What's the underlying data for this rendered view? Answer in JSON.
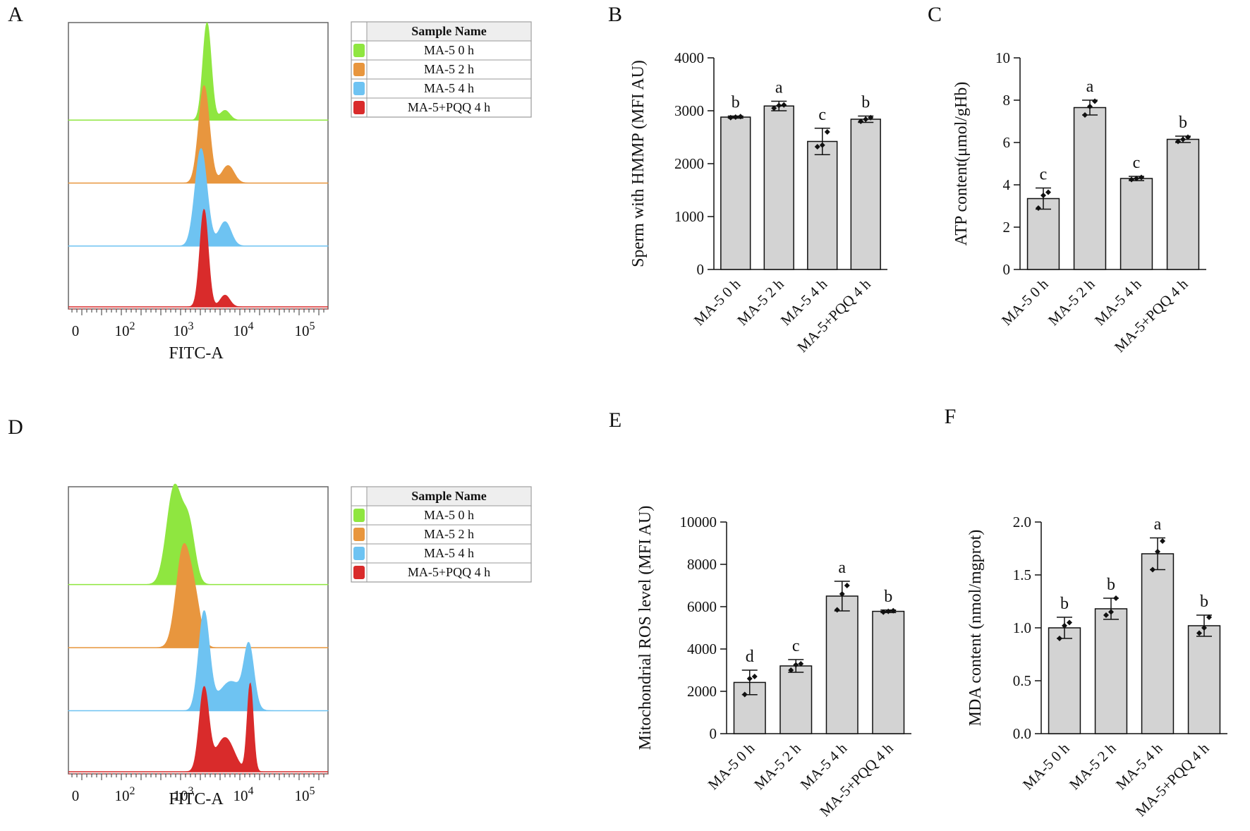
{
  "panels": [
    "A",
    "B",
    "C",
    "D",
    "E",
    "F"
  ],
  "chart_data": [
    {
      "panel": "A",
      "type": "area",
      "chart_kind": "flow-cytometry-histogram",
      "xlabel": "FITC-A",
      "x_ticks": [
        "0",
        "10^2",
        "10^3",
        "10^4",
        "10^5"
      ],
      "legend": {
        "header": "Sample Name",
        "entries": [
          "MA-5 0 h",
          "MA-5 2 h",
          "MA-5 4 h",
          "MA-5+PQQ 4 h"
        ],
        "placement": "right"
      },
      "series": [
        {
          "name": "MA-5 0 h",
          "color": "#8fe640",
          "peaks": [
            {
              "log_x": 3.3,
              "height": 1.0,
              "width": 0.07
            },
            {
              "log_x": 3.6,
              "height": 0.1,
              "width": 0.08
            }
          ]
        },
        {
          "name": "MA-5 2 h",
          "color": "#e8963e",
          "peaks": [
            {
              "log_x": 3.25,
              "height": 1.0,
              "width": 0.09
            },
            {
              "log_x": 3.65,
              "height": 0.18,
              "width": 0.1
            }
          ]
        },
        {
          "name": "MA-5 4 h",
          "color": "#6ec3f2",
          "peaks": [
            {
              "log_x": 3.2,
              "height": 1.0,
              "width": 0.1
            },
            {
              "log_x": 3.6,
              "height": 0.25,
              "width": 0.1
            }
          ]
        },
        {
          "name": "MA-5+PQQ 4 h",
          "color": "#d92b2b",
          "peaks": [
            {
              "log_x": 3.25,
              "height": 1.0,
              "width": 0.07
            },
            {
              "log_x": 3.6,
              "height": 0.12,
              "width": 0.08
            }
          ]
        }
      ]
    },
    {
      "panel": "B",
      "type": "bar",
      "categories": [
        "MA-5 0 h",
        "MA-5 2 h",
        "MA-5 4 h",
        "MA-5+PQQ 4 h"
      ],
      "values": [
        2880,
        3090,
        2420,
        2840
      ],
      "errors": [
        20,
        90,
        250,
        60
      ],
      "points": [
        [
          2870,
          2880,
          2890
        ],
        [
          3050,
          3100,
          3110
        ],
        [
          2320,
          2350,
          2600
        ],
        [
          2800,
          2840,
          2870
        ]
      ],
      "letters": [
        "b",
        "a",
        "c",
        "b"
      ],
      "ylabel": "Sperm with HMMP (MFI AU)",
      "ylim": [
        0,
        4000
      ],
      "yticks": [
        0,
        1000,
        2000,
        3000,
        4000
      ]
    },
    {
      "panel": "C",
      "type": "bar",
      "categories": [
        "MA-5 0 h",
        "MA-5 2 h",
        "MA-5 4 h",
        "MA-5+PQQ 4 h"
      ],
      "values": [
        3.35,
        7.65,
        4.3,
        6.15
      ],
      "errors": [
        0.5,
        0.35,
        0.1,
        0.15
      ],
      "points": [
        [
          2.9,
          3.5,
          3.65
        ],
        [
          7.3,
          7.7,
          7.95
        ],
        [
          4.25,
          4.3,
          4.35
        ],
        [
          6.05,
          6.15,
          6.25
        ]
      ],
      "letters": [
        "c",
        "a",
        "c",
        "b"
      ],
      "ylabel": "ATP  content(μmol/gHb)",
      "ylim": [
        0,
        10
      ],
      "yticks": [
        0,
        2,
        4,
        6,
        8,
        10
      ]
    },
    {
      "panel": "D",
      "type": "area",
      "chart_kind": "flow-cytometry-histogram",
      "xlabel": "FITC-A",
      "x_ticks": [
        "0",
        "10^2",
        "10^3",
        "10^4",
        "10^5"
      ],
      "legend": {
        "header": "Sample Name",
        "entries": [
          "MA-5 0 h",
          "MA-5 2 h",
          "MA-5 4 h",
          "MA-5+PQQ 4 h"
        ],
        "placement": "right"
      },
      "series": [
        {
          "name": "MA-5 0 h",
          "color": "#8fe640",
          "peaks": [
            {
              "log_x": 2.75,
              "height": 1.0,
              "width": 0.13
            },
            {
              "log_x": 3.0,
              "height": 0.55,
              "width": 0.1
            }
          ]
        },
        {
          "name": "MA-5 2 h",
          "color": "#e8963e",
          "peaks": [
            {
              "log_x": 2.9,
              "height": 1.0,
              "width": 0.12
            },
            {
              "log_x": 3.1,
              "height": 0.4,
              "width": 0.1
            }
          ]
        },
        {
          "name": "MA-5 4 h",
          "color": "#6ec3f2",
          "peaks": [
            {
              "log_x": 3.25,
              "height": 1.0,
              "width": 0.09
            },
            {
              "log_x": 3.7,
              "height": 0.3,
              "width": 0.2
            },
            {
              "log_x": 4.0,
              "height": 0.6,
              "width": 0.08
            }
          ]
        },
        {
          "name": "MA-5+PQQ 4 h",
          "color": "#d92b2b",
          "peaks": [
            {
              "log_x": 3.25,
              "height": 0.85,
              "width": 0.08
            },
            {
              "log_x": 3.6,
              "height": 0.35,
              "width": 0.15
            },
            {
              "log_x": 4.02,
              "height": 0.9,
              "width": 0.05
            }
          ]
        }
      ]
    },
    {
      "panel": "E",
      "type": "bar",
      "categories": [
        "MA-5 0 h",
        "MA-5 2 h",
        "MA-5 4 h",
        "MA-5+PQQ 4 h"
      ],
      "values": [
        2420,
        3200,
        6500,
        5780
      ],
      "errors": [
        580,
        300,
        700,
        60
      ],
      "points": [
        [
          1850,
          2600,
          2700
        ],
        [
          3000,
          3250,
          3300
        ],
        [
          5850,
          6600,
          7000
        ],
        [
          5740,
          5780,
          5810
        ]
      ],
      "letters": [
        "d",
        "c",
        "a",
        "b"
      ],
      "ylabel": "Mitochondrial ROS level (MFI AU)",
      "ylim": [
        0,
        10000
      ],
      "yticks": [
        0,
        2000,
        4000,
        6000,
        8000,
        10000
      ]
    },
    {
      "panel": "F",
      "type": "bar",
      "categories": [
        "MA-5 0 h",
        "MA-5 2 h",
        "MA-5 4 h",
        "MA-5+PQQ 4 h"
      ],
      "values": [
        1.0,
        1.18,
        1.7,
        1.02
      ],
      "errors": [
        0.1,
        0.1,
        0.15,
        0.1
      ],
      "points": [
        [
          0.9,
          1.02,
          1.05
        ],
        [
          1.12,
          1.15,
          1.28
        ],
        [
          1.55,
          1.72,
          1.82
        ],
        [
          0.95,
          1.0,
          1.1
        ]
      ],
      "letters": [
        "b",
        "b",
        "a",
        "b"
      ],
      "ylabel": "MDA  content (nmol/mgprot)",
      "ylim": [
        0,
        2.0
      ],
      "yticks": [
        "0.0",
        "0.5",
        "1.0",
        "1.5",
        "2.0"
      ],
      "ytick_values": [
        0,
        0.5,
        1.0,
        1.5,
        2.0
      ]
    }
  ]
}
